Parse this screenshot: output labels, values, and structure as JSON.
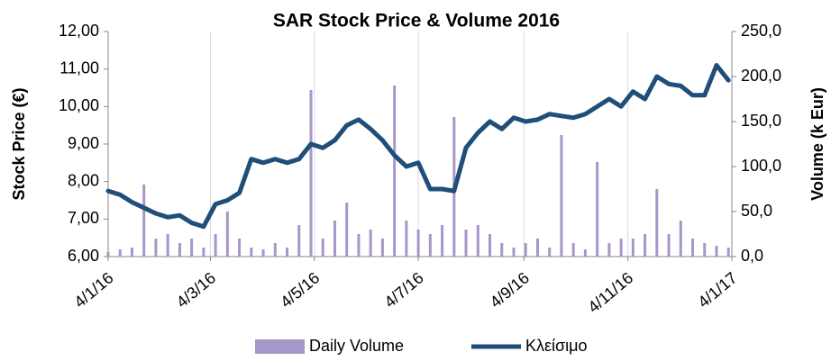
{
  "chart_data": {
    "type": "bar-line",
    "title": "SAR Stock Price & Volume 2016",
    "y_label": "Stock Price (€)",
    "y2_label": "Volume (k Eur)",
    "x": [
      "2016-01-04",
      "2016-01-11",
      "2016-01-18",
      "2016-01-25",
      "2016-02-01",
      "2016-02-08",
      "2016-02-15",
      "2016-02-22",
      "2016-02-29",
      "2016-03-07",
      "2016-03-14",
      "2016-03-21",
      "2016-03-28",
      "2016-04-04",
      "2016-04-11",
      "2016-04-18",
      "2016-04-25",
      "2016-05-02",
      "2016-05-09",
      "2016-05-16",
      "2016-05-23",
      "2016-05-30",
      "2016-06-06",
      "2016-06-13",
      "2016-06-20",
      "2016-06-27",
      "2016-07-04",
      "2016-07-11",
      "2016-07-18",
      "2016-07-25",
      "2016-08-01",
      "2016-08-08",
      "2016-08-15",
      "2016-08-22",
      "2016-08-29",
      "2016-09-05",
      "2016-09-12",
      "2016-09-19",
      "2016-09-26",
      "2016-10-03",
      "2016-10-10",
      "2016-10-17",
      "2016-10-24",
      "2016-10-31",
      "2016-11-07",
      "2016-11-14",
      "2016-11-21",
      "2016-11-28",
      "2016-12-05",
      "2016-12-12",
      "2016-12-19",
      "2016-12-26",
      "2017-01-02"
    ],
    "series": [
      {
        "name": "Daily Volume",
        "color": "#a796c8",
        "axis": "y2",
        "kind": "bar",
        "values": [
          5,
          8,
          10,
          80,
          20,
          25,
          15,
          20,
          10,
          25,
          50,
          20,
          10,
          8,
          15,
          10,
          35,
          185,
          20,
          40,
          60,
          25,
          30,
          20,
          190,
          40,
          30,
          25,
          35,
          155,
          30,
          35,
          25,
          15,
          10,
          15,
          20,
          10,
          135,
          15,
          8,
          105,
          15,
          20,
          20,
          25,
          75,
          25,
          40,
          20,
          15,
          12,
          10
        ]
      },
      {
        "name": "Κλείσιμο",
        "color": "#1f4e79",
        "axis": "y",
        "kind": "line",
        "values": [
          7.75,
          7.65,
          7.45,
          7.3,
          7.15,
          7.05,
          7.1,
          6.9,
          6.8,
          7.4,
          7.5,
          7.7,
          8.6,
          8.5,
          8.6,
          8.5,
          8.6,
          9.0,
          8.9,
          9.1,
          9.5,
          9.65,
          9.4,
          9.1,
          8.7,
          8.4,
          8.5,
          7.8,
          7.8,
          7.75,
          8.9,
          9.3,
          9.6,
          9.4,
          9.7,
          9.6,
          9.65,
          9.8,
          9.75,
          9.7,
          9.8,
          10.0,
          10.2,
          10.0,
          10.4,
          10.2,
          10.8,
          10.6,
          10.55,
          10.3,
          10.3,
          11.1,
          10.7
        ]
      }
    ],
    "xlim": [
      "2016-01-04",
      "2017-01-04"
    ],
    "xticks": [
      {
        "value": "2016-01-04",
        "label": "4/1/16"
      },
      {
        "value": "2016-03-04",
        "label": "4/3/16"
      },
      {
        "value": "2016-05-04",
        "label": "4/5/16"
      },
      {
        "value": "2016-07-04",
        "label": "4/7/16"
      },
      {
        "value": "2016-09-04",
        "label": "4/9/16"
      },
      {
        "value": "2016-11-04",
        "label": "4/11/16"
      },
      {
        "value": "2017-01-04",
        "label": "4/1/17"
      }
    ],
    "ylim": [
      6,
      12
    ],
    "yticks": [
      {
        "value": 6,
        "label": "6,00"
      },
      {
        "value": 7,
        "label": "7,00"
      },
      {
        "value": 8,
        "label": "8,00"
      },
      {
        "value": 9,
        "label": "9,00"
      },
      {
        "value": 10,
        "label": "10,00"
      },
      {
        "value": 11,
        "label": "11,00"
      },
      {
        "value": 12,
        "label": "12,00"
      }
    ],
    "y2lim": [
      0,
      250
    ],
    "y2ticks": [
      {
        "value": 0,
        "label": "0,0"
      },
      {
        "value": 50,
        "label": "50,0"
      },
      {
        "value": 100,
        "label": "100,0"
      },
      {
        "value": 150,
        "label": "150,0"
      },
      {
        "value": 200,
        "label": "200,0"
      },
      {
        "value": 250,
        "label": "250,0"
      }
    ],
    "grid": "x",
    "legend": "bottom"
  }
}
